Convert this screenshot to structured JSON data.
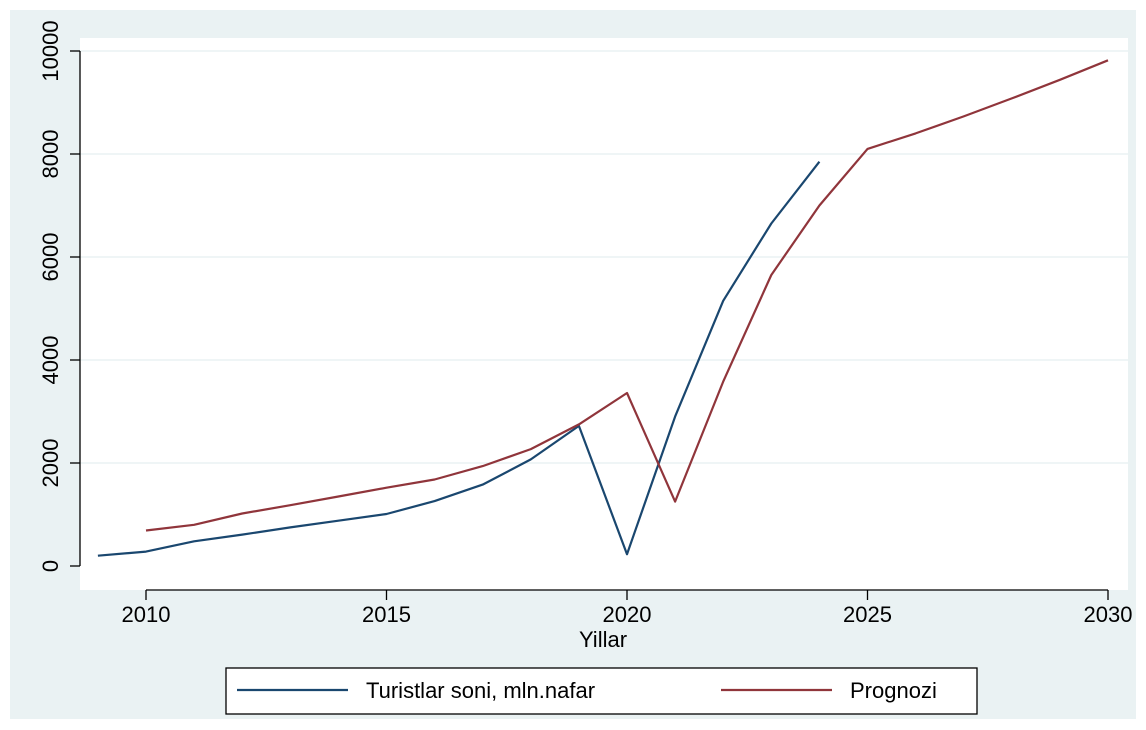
{
  "chart_data": {
    "type": "line",
    "title": "",
    "xlabel": "Yillar",
    "ylabel": "",
    "xlim": [
      2009,
      2030
    ],
    "ylim": [
      0,
      10000
    ],
    "x_ticks": [
      2010,
      2015,
      2020,
      2025,
      2030
    ],
    "y_ticks": [
      0,
      2000,
      4000,
      6000,
      8000,
      10000
    ],
    "grid": "horizontal",
    "legend_position": "bottom",
    "series": [
      {
        "name": "Turistlar soni, mln.nafar",
        "color": "#1a476f",
        "x": [
          2009,
          2010,
          2011,
          2012,
          2013,
          2014,
          2015,
          2016,
          2017,
          2018,
          2019,
          2020,
          2021,
          2022,
          2023,
          2024
        ],
        "y": [
          200,
          280,
          480,
          610,
          750,
          880,
          1010,
          1260,
          1580,
          2070,
          2720,
          230,
          2900,
          5150,
          6650,
          7850
        ]
      },
      {
        "name": "Prognozi",
        "color": "#90353b",
        "x": [
          2010,
          2011,
          2012,
          2013,
          2014,
          2015,
          2016,
          2017,
          2018,
          2019,
          2020,
          2021,
          2022,
          2023,
          2024,
          2025,
          2026,
          2027,
          2028,
          2029,
          2030
        ],
        "y": [
          690,
          800,
          1020,
          1180,
          1350,
          1520,
          1680,
          1940,
          2270,
          2750,
          3360,
          1250,
          3580,
          5650,
          7000,
          8100,
          8400,
          8730,
          9080,
          9440,
          9820
        ]
      }
    ]
  }
}
